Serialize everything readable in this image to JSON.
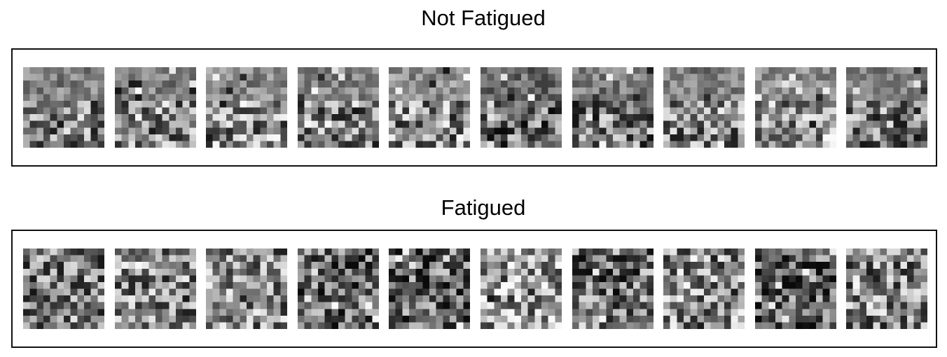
{
  "groups": [
    {
      "title": "Not Fatigued",
      "tile_count": 10
    },
    {
      "title": "Fatigued",
      "tile_count": 10
    }
  ]
}
